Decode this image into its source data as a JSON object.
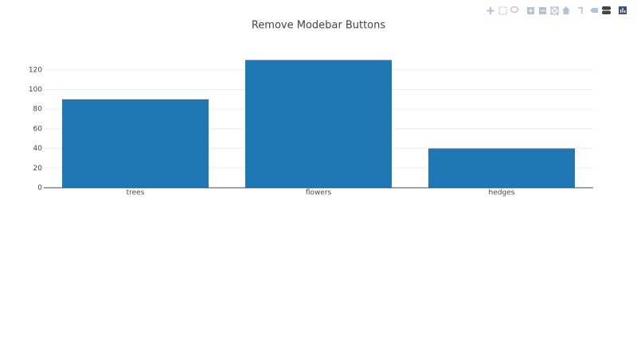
{
  "chart_data": {
    "type": "bar",
    "title": "Remove Modebar Buttons",
    "categories": [
      "trees",
      "flowers",
      "hedges"
    ],
    "values": [
      90,
      130,
      40
    ],
    "color": "#1f77b4",
    "ylim": [
      0,
      136.8
    ],
    "yticks": [
      0,
      20,
      40,
      60,
      80,
      100,
      120
    ],
    "grid": true
  }
}
